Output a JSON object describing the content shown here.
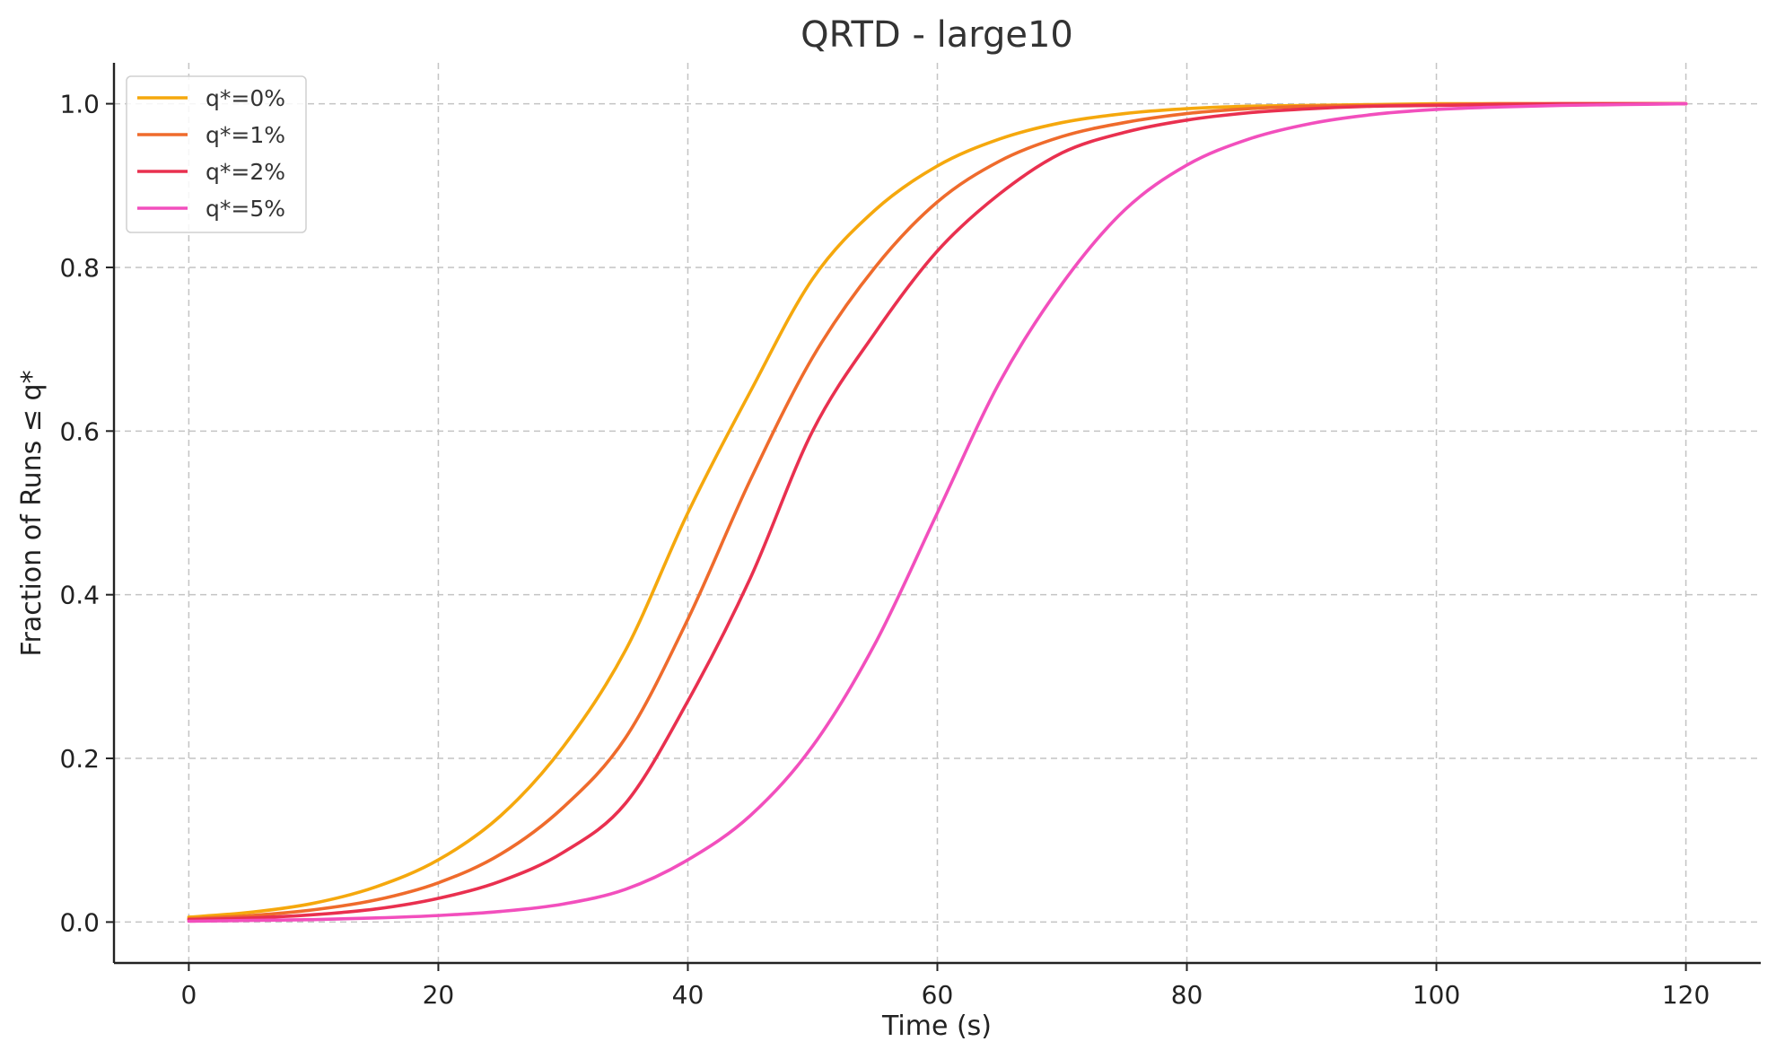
{
  "chart_data": {
    "type": "line",
    "title": "QRTD - large10",
    "xlabel": "Time (s)",
    "ylabel": "Fraction of Runs ≤ q*",
    "xlim": [
      -6,
      126
    ],
    "ylim": [
      -0.05,
      1.05
    ],
    "xticks": [
      0,
      20,
      40,
      60,
      80,
      100,
      120
    ],
    "xtick_labels": [
      "0",
      "20",
      "40",
      "60",
      "80",
      "100",
      "120"
    ],
    "yticks": [
      0.0,
      0.2,
      0.4,
      0.6,
      0.8,
      1.0
    ],
    "ytick_labels": [
      "0.0",
      "0.2",
      "0.4",
      "0.6",
      "0.8",
      "1.0"
    ],
    "grid": true,
    "legend_position": "top-left",
    "x": [
      0,
      5,
      10,
      15,
      20,
      25,
      30,
      35,
      40,
      45,
      50,
      55,
      60,
      65,
      70,
      75,
      80,
      85,
      90,
      95,
      100,
      105,
      110,
      115,
      120
    ],
    "series": [
      {
        "name": "q*=0%",
        "color": "#f5a80d",
        "values": [
          0.006,
          0.012,
          0.023,
          0.043,
          0.076,
          0.13,
          0.214,
          0.332,
          0.5,
          0.648,
          0.786,
          0.87,
          0.924,
          0.957,
          0.977,
          0.988,
          0.994,
          0.997,
          0.998,
          0.999,
          1.0,
          1.0,
          1.0,
          1.0,
          1.0
        ]
      },
      {
        "name": "q*=1%",
        "color": "#ef6b2c",
        "values": [
          0.004,
          0.008,
          0.015,
          0.027,
          0.048,
          0.083,
          0.14,
          0.225,
          0.37,
          0.54,
          0.69,
          0.8,
          0.88,
          0.93,
          0.96,
          0.977,
          0.988,
          0.994,
          0.997,
          0.998,
          0.999,
          1.0,
          1.0,
          1.0,
          1.0
        ]
      },
      {
        "name": "q*=2%",
        "color": "#e9304f",
        "values": [
          0.003,
          0.005,
          0.009,
          0.016,
          0.029,
          0.05,
          0.085,
          0.145,
          0.27,
          0.42,
          0.6,
          0.72,
          0.82,
          0.89,
          0.94,
          0.965,
          0.98,
          0.989,
          0.994,
          0.997,
          0.998,
          0.999,
          1.0,
          1.0,
          1.0
        ]
      },
      {
        "name": "q*=5%",
        "color": "#f24fbd",
        "values": [
          0.001,
          0.002,
          0.003,
          0.005,
          0.008,
          0.013,
          0.022,
          0.04,
          0.076,
          0.13,
          0.215,
          0.34,
          0.5,
          0.66,
          0.78,
          0.87,
          0.925,
          0.957,
          0.976,
          0.987,
          0.993,
          0.996,
          0.998,
          0.999,
          1.0
        ]
      }
    ]
  }
}
